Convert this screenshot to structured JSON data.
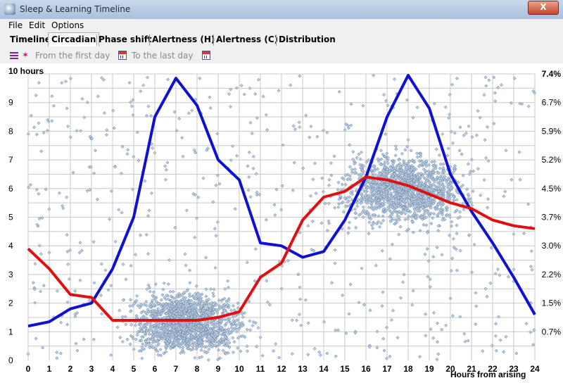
{
  "window": {
    "title": "Sleep & Learning Timeline",
    "close_label": "X"
  },
  "menu": [
    "File",
    "Edit",
    "Options"
  ],
  "tabs": [
    "Timeline",
    "Circadian",
    "Phase shift",
    "Alertness (H)",
    "Alertness (C)",
    "Distribution"
  ],
  "active_tab": "Circadian",
  "toolbar": {
    "from_label": "From the first day",
    "to_label": "To the last day"
  },
  "colors": {
    "scatter_fill": "#b8cbe2",
    "scatter_stroke": "#5e7896",
    "blue_line": "#1010d0",
    "red_line": "#e01010",
    "grid": "#c9c9c9"
  },
  "chart_data": {
    "type": "line",
    "title": "",
    "xlabel": "Hours from arising",
    "ylabel_left": "10 hours",
    "x_ticks": [
      "0",
      "1",
      "2",
      "3",
      "4",
      "5",
      "6",
      "7",
      "8",
      "9",
      "10",
      "11",
      "12",
      "13",
      "14",
      "15",
      "16",
      "17",
      "18",
      "19",
      "20",
      "21",
      "22",
      "23",
      "24"
    ],
    "xlim": [
      0,
      24
    ],
    "y_left_ticks": [
      "0",
      "1",
      "2",
      "3",
      "4",
      "5",
      "6",
      "7",
      "8",
      "9"
    ],
    "ylim_left": [
      0,
      10
    ],
    "y_right_ticks": [
      "0.7%",
      "1.5%",
      "2.2%",
      "3.0%",
      "3.7%",
      "4.5%",
      "5.2%",
      "5.9%",
      "6.7%",
      "7.4%"
    ],
    "grid": true,
    "series": [
      {
        "color": "blue",
        "x": [
          0,
          1,
          2,
          3,
          4,
          5,
          6,
          7,
          8,
          9,
          10,
          11,
          12,
          13,
          14,
          15,
          16,
          17,
          18,
          19,
          20,
          21,
          22,
          23,
          24
        ],
        "values": [
          1.2,
          1.35,
          1.8,
          2.0,
          3.2,
          5.0,
          8.5,
          9.85,
          8.9,
          7.0,
          6.3,
          4.1,
          4.0,
          3.6,
          3.8,
          4.9,
          6.4,
          8.5,
          9.95,
          8.8,
          6.5,
          5.2,
          4.1,
          2.9,
          1.6
        ]
      },
      {
        "color": "red",
        "x": [
          0,
          1,
          2,
          3,
          4,
          5,
          6,
          7,
          8,
          9,
          10,
          11,
          12,
          13,
          14,
          15,
          16,
          17,
          18,
          19,
          20,
          21,
          22,
          23,
          24
        ],
        "values": [
          3.9,
          3.2,
          2.3,
          2.2,
          1.4,
          1.4,
          1.4,
          1.4,
          1.4,
          1.5,
          1.7,
          2.9,
          3.4,
          4.9,
          5.7,
          5.9,
          6.4,
          6.3,
          6.1,
          5.8,
          5.5,
          5.3,
          4.9,
          4.7,
          4.6
        ]
      }
    ],
    "scatter_clusters": [
      {
        "x_center": 7.5,
        "x_spread": 2.0,
        "y_center": 1.3,
        "y_spread": 0.8,
        "count": 1500
      },
      {
        "x_center": 17.8,
        "x_spread": 2.2,
        "y_center": 6.0,
        "y_spread": 0.9,
        "count": 1400
      },
      {
        "x_center": 12,
        "x_spread": 12,
        "y_center": 5,
        "y_spread": 5,
        "count": 600
      }
    ]
  }
}
